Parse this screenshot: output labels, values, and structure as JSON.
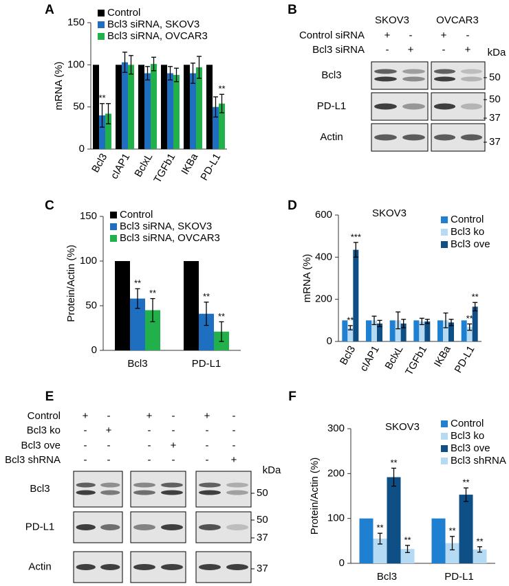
{
  "chart_data": [
    {
      "type": "bar",
      "panel": "A",
      "ylabel": "mRNA (%)",
      "categories": [
        "Bcl3",
        "cIAP1",
        "BclxL",
        "TGFb1",
        "IKBa",
        "PD-L1"
      ],
      "ylim": [
        0,
        150
      ],
      "yticks": [
        0,
        50,
        100,
        150
      ],
      "legend": "upper left",
      "series": [
        {
          "name": "Control",
          "color": "#000000",
          "values": [
            100,
            100,
            100,
            100,
            100,
            100
          ]
        },
        {
          "name": "Bcl3 siRNA, SKOV3",
          "color": "#1f6fc0",
          "values": [
            40,
            103,
            90,
            90,
            90,
            50
          ],
          "errors": [
            14,
            12,
            8,
            8,
            12,
            12
          ],
          "significance": [
            "**",
            null,
            null,
            null,
            null,
            null
          ]
        },
        {
          "name": "Bcl3 siRNA, OVCAR3",
          "color": "#22b04b",
          "values": [
            42,
            100,
            101,
            88,
            97,
            54
          ],
          "errors": [
            12,
            11,
            8,
            8,
            13,
            11
          ],
          "significance": [
            null,
            null,
            null,
            null,
            null,
            "**"
          ]
        }
      ]
    },
    {
      "type": "bar",
      "panel": "C",
      "ylabel": "Protein/Actin (%)",
      "categories": [
        "Bcl3",
        "PD-L1"
      ],
      "ylim": [
        0,
        150
      ],
      "yticks": [
        0,
        50,
        100,
        150
      ],
      "legend": "upper left",
      "series": [
        {
          "name": "Control",
          "color": "#000000",
          "values": [
            100,
            100
          ]
        },
        {
          "name": "Bcl3 siRNA, SKOV3",
          "color": "#1f6fc0",
          "values": [
            58,
            41
          ],
          "errors": [
            11,
            13
          ],
          "significance": [
            "**",
            "**"
          ]
        },
        {
          "name": "Bcl3 siRNA, OVCAR3",
          "color": "#22b04b",
          "values": [
            45,
            21
          ],
          "errors": [
            13,
            11
          ],
          "significance": [
            "**",
            "**"
          ]
        }
      ]
    },
    {
      "type": "bar",
      "panel": "D",
      "title": "SKOV3",
      "ylabel": "mRNA (%)",
      "categories": [
        "Bcl3",
        "cIAP1",
        "BclxL",
        "TGFb1",
        "IKBa",
        "PD-L1"
      ],
      "ylim": [
        0,
        600
      ],
      "yticks": [
        0,
        200,
        400,
        600
      ],
      "legend": "upper right",
      "series": [
        {
          "name": "Control",
          "color": "#1f7fd0",
          "values": [
            100,
            100,
            100,
            100,
            100,
            100
          ]
        },
        {
          "name": "Bcl3 ko",
          "color": "#b5daf3",
          "values": [
            65,
            100,
            100,
            95,
            100,
            68
          ],
          "errors": [
            10,
            20,
            40,
            15,
            35,
            15
          ],
          "significance": [
            "**",
            null,
            null,
            null,
            null,
            "**"
          ]
        },
        {
          "name": "Bcl3 ove",
          "color": "#0e4f86",
          "values": [
            435,
            85,
            85,
            95,
            90,
            165
          ],
          "errors": [
            35,
            15,
            20,
            10,
            15,
            20
          ],
          "significance": [
            "***",
            null,
            null,
            null,
            null,
            "**"
          ]
        }
      ]
    },
    {
      "type": "bar",
      "panel": "F",
      "title": "SKOV3",
      "ylabel": "Protein/Actin (%)",
      "categories": [
        "Bcl3",
        "PD-L1"
      ],
      "ylim": [
        0,
        300
      ],
      "yticks": [
        0,
        100,
        200,
        300
      ],
      "legend": "upper right",
      "series": [
        {
          "name": "Control",
          "color": "#1f7fd0",
          "values": [
            100,
            100
          ]
        },
        {
          "name": "Bcl3 ko",
          "color": "#b5daf3",
          "values": [
            55,
            45
          ],
          "errors": [
            12,
            15
          ],
          "significance": [
            "**",
            "**"
          ]
        },
        {
          "name": "Bcl3 ove",
          "color": "#0e4f86",
          "values": [
            192,
            153
          ],
          "errors": [
            20,
            15
          ],
          "significance": [
            "**",
            "**"
          ]
        },
        {
          "name": "Bcl3 shRNA",
          "color": "#b5daf3",
          "values": [
            32,
            31
          ],
          "errors": [
            8,
            6
          ],
          "significance": [
            "**",
            "**"
          ]
        }
      ]
    }
  ],
  "blots": [
    {
      "panel": "B",
      "groups": [
        "SKOV3",
        "OVCAR3"
      ],
      "conditions": [
        {
          "label": "Control siRNA",
          "signs": [
            "+",
            "-",
            "+",
            "-"
          ]
        },
        {
          "label": "Bcl3 siRNA",
          "signs": [
            "-",
            "+",
            "-",
            "+"
          ]
        }
      ],
      "unit": "kDa",
      "bands": [
        {
          "label": "Bcl3",
          "markers": [
            50
          ]
        },
        {
          "label": "PD-L1",
          "markers": [
            50,
            37
          ]
        },
        {
          "label": "Actin",
          "markers": [
            37
          ]
        }
      ]
    },
    {
      "panel": "E",
      "conditions": [
        {
          "label": "Control",
          "signs": [
            "+",
            "-",
            "+",
            "-",
            "+",
            "-"
          ]
        },
        {
          "label": "Bcl3 ko",
          "signs": [
            "-",
            "+",
            "-",
            "-",
            "-",
            "-"
          ]
        },
        {
          "label": "Bcl3 ove",
          "signs": [
            "-",
            "-",
            "-",
            "+",
            "-",
            "-"
          ]
        },
        {
          "label": "Bcl3 shRNA",
          "signs": [
            "-",
            "-",
            "-",
            "-",
            "-",
            "+"
          ]
        }
      ],
      "unit": "kDa",
      "bands": [
        {
          "label": "Bcl3",
          "markers": [
            50
          ]
        },
        {
          "label": "PD-L1",
          "markers": [
            50,
            37
          ]
        },
        {
          "label": "Actin",
          "markers": [
            37
          ]
        }
      ]
    }
  ]
}
